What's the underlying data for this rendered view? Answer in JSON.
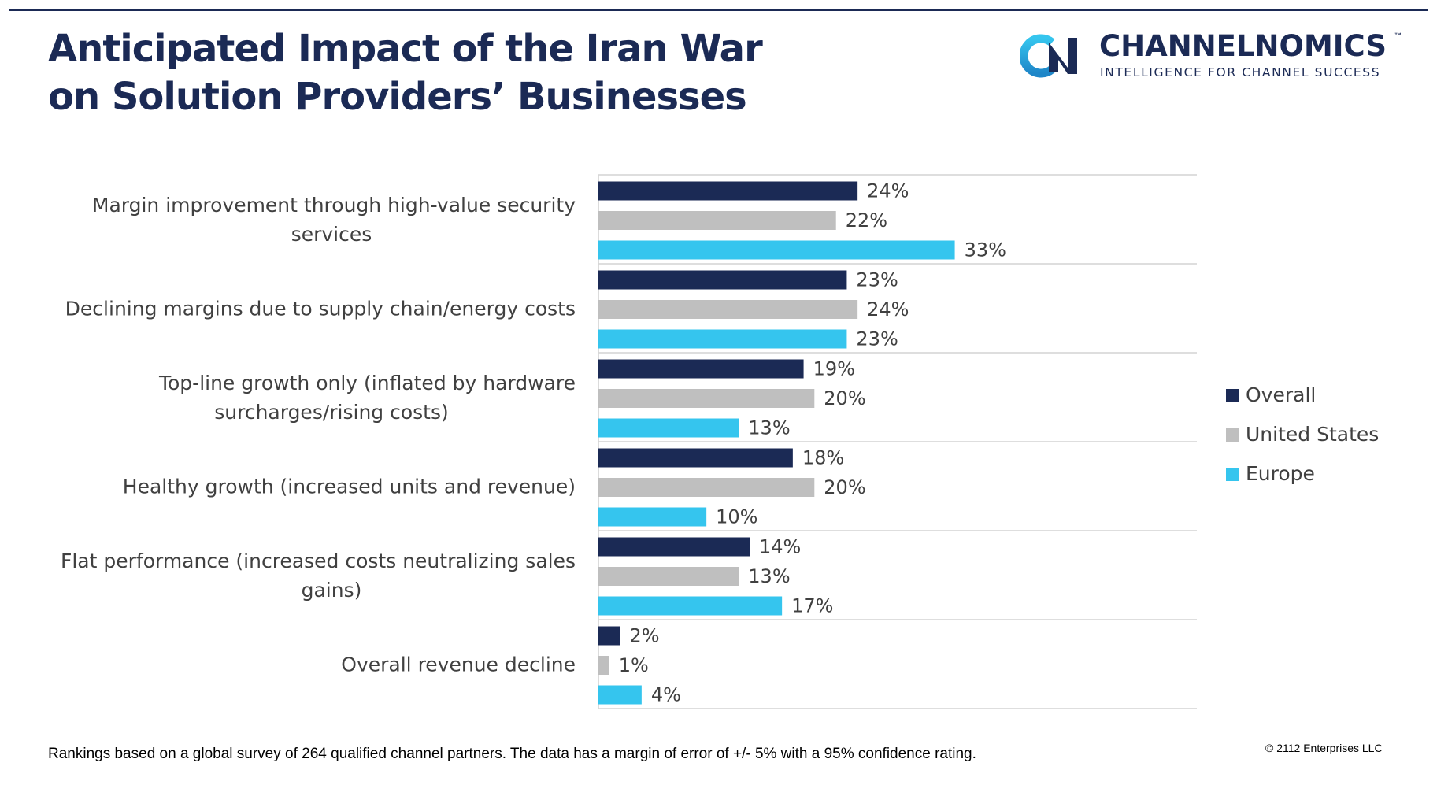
{
  "header": {
    "title_line1": "Anticipated Impact of the Iran War",
    "title_line2": "on Solution Providers’ Businesses"
  },
  "brand": {
    "name": "CHANNELNOMICS",
    "trademark": "™",
    "tagline": "INTELLIGENCE FOR CHANNEL SUCCESS"
  },
  "chart_data": {
    "type": "bar",
    "orientation": "horizontal",
    "title": "Anticipated Impact of the Iran War on Solution Providers’ Businesses",
    "categories": [
      [
        "Margin improvement through high-value security",
        "services"
      ],
      [
        "Declining margins due to supply chain/energy costs"
      ],
      [
        "Top-line growth only (inflated by hardware",
        "surcharges/rising costs)"
      ],
      [
        "Healthy growth (increased units and revenue)"
      ],
      [
        "Flat performance (increased costs neutralizing sales",
        "gains)"
      ],
      [
        "Overall revenue decline"
      ]
    ],
    "series": [
      {
        "name": "Overall",
        "color": "#1b2a55",
        "values": [
          24,
          23,
          19,
          18,
          14,
          2
        ]
      },
      {
        "name": "United States",
        "color": "#bfbfbf",
        "values": [
          22,
          24,
          20,
          20,
          13,
          1
        ]
      },
      {
        "name": "Europe",
        "color": "#35c5ee",
        "values": [
          33,
          23,
          13,
          10,
          17,
          4
        ]
      }
    ],
    "value_suffix": "%",
    "xlim": [
      0,
      35
    ],
    "legend": "right",
    "grid": "horizontal separators between categories"
  },
  "footer": {
    "note": "Rankings based on a global survey of 264 qualified channel partners. The data has a margin of error of +/- 5% with a 95% confidence rating.",
    "copyright": "© 2112 Enterprises LLC"
  }
}
